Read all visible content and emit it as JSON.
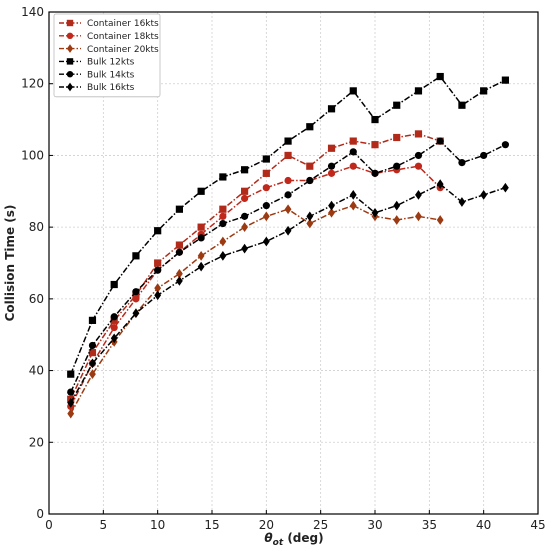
{
  "chart_data": {
    "type": "line",
    "title": "",
    "xlabel_symbol": "θ",
    "xlabel_sub": "ot",
    "xlabel_rest": " (deg)",
    "ylabel": "Collision Time (s)",
    "xlim": [
      0,
      45
    ],
    "ylim": [
      0,
      140
    ],
    "xticks": [
      0,
      5,
      10,
      15,
      20,
      25,
      30,
      35,
      40,
      45
    ],
    "yticks": [
      0,
      20,
      40,
      60,
      80,
      100,
      120,
      140
    ],
    "grid": true,
    "legend_position": "top-left",
    "series": [
      {
        "name": "Container 16kts",
        "color": "#b22a1a",
        "marker": "square",
        "x": [
          2,
          4,
          6,
          8,
          10,
          12,
          14,
          16,
          18,
          20,
          22,
          24,
          26,
          28,
          30,
          32,
          34,
          36
        ],
        "y": [
          32,
          45,
          54,
          61,
          70,
          75,
          80,
          85,
          90,
          95,
          100,
          97,
          102,
          104,
          103,
          105,
          106,
          104
        ]
      },
      {
        "name": "Container 18kts",
        "color": "#c0281c",
        "marker": "circle",
        "x": [
          2,
          4,
          6,
          8,
          10,
          12,
          14,
          16,
          18,
          20,
          22,
          24,
          26,
          28,
          30,
          32,
          34,
          36
        ],
        "y": [
          30,
          42,
          52,
          60,
          68,
          73,
          78,
          83,
          88,
          91,
          93,
          93,
          95,
          97,
          95,
          96,
          97,
          91
        ]
      },
      {
        "name": "Container 20kts",
        "color": "#9c3a12",
        "marker": "diamond",
        "x": [
          2,
          4,
          6,
          8,
          10,
          12,
          14,
          16,
          18,
          20,
          22,
          24,
          26,
          28,
          30,
          32,
          34,
          36
        ],
        "y": [
          28,
          39,
          48,
          56,
          63,
          67,
          72,
          76,
          80,
          83,
          85,
          81,
          84,
          86,
          83,
          82,
          83,
          82
        ]
      },
      {
        "name": "Bulk 12kts",
        "color": "#000000",
        "marker": "square",
        "x": [
          2,
          4,
          6,
          8,
          10,
          12,
          14,
          16,
          18,
          20,
          22,
          24,
          26,
          28,
          30,
          32,
          34,
          36,
          38,
          40,
          42
        ],
        "y": [
          39,
          54,
          64,
          72,
          79,
          85,
          90,
          94,
          96,
          99,
          104,
          108,
          113,
          118,
          110,
          114,
          118,
          122,
          114,
          118,
          121
        ]
      },
      {
        "name": "Bulk 14kts",
        "color": "#000000",
        "marker": "circle",
        "x": [
          2,
          4,
          6,
          8,
          10,
          12,
          14,
          16,
          18,
          20,
          22,
          24,
          26,
          28,
          30,
          32,
          34,
          36,
          38,
          40,
          42
        ],
        "y": [
          34,
          47,
          55,
          62,
          68,
          73,
          77,
          81,
          83,
          86,
          89,
          93,
          97,
          101,
          95,
          97,
          100,
          104,
          98,
          100,
          103
        ]
      },
      {
        "name": "Bulk 16kts",
        "color": "#000000",
        "marker": "diamond",
        "x": [
          2,
          4,
          6,
          8,
          10,
          12,
          14,
          16,
          18,
          20,
          22,
          24,
          26,
          28,
          30,
          32,
          34,
          36,
          38,
          40,
          42
        ],
        "y": [
          31,
          42,
          49,
          56,
          61,
          65,
          69,
          72,
          74,
          76,
          79,
          83,
          86,
          89,
          84,
          86,
          89,
          92,
          87,
          89,
          91
        ]
      }
    ]
  }
}
